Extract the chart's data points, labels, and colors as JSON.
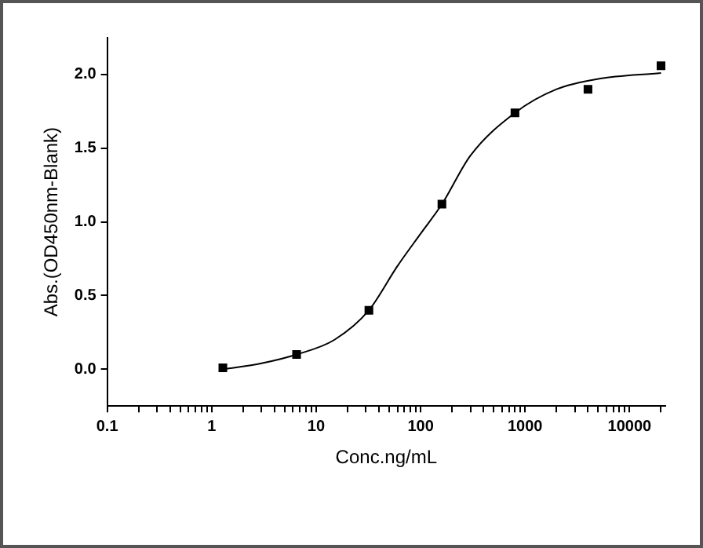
{
  "chart_data": {
    "type": "scatter",
    "xlabel": "Conc.ng/mL",
    "ylabel": "Abs.(OD450nm-Blank)",
    "log": "x",
    "xlim": [
      0.1,
      22000
    ],
    "ylim": [
      -0.25,
      2.25
    ],
    "xticks": [
      0.1,
      {
        "value": 0.2,
        "label": null
      },
      {
        "value": 0.3,
        "label": null
      },
      {
        "value": 0.4,
        "label": null
      },
      {
        "value": 0.5,
        "label": null
      },
      {
        "value": 0.6,
        "label": null
      },
      {
        "value": 0.7,
        "label": null
      },
      {
        "value": 0.8,
        "label": null
      },
      {
        "value": 0.9,
        "label": null
      },
      1,
      {
        "value": 2,
        "label": null
      },
      {
        "value": 3,
        "label": null
      },
      {
        "value": 4,
        "label": null
      },
      {
        "value": 5,
        "label": null
      },
      {
        "value": 6,
        "label": null
      },
      {
        "value": 7,
        "label": null
      },
      {
        "value": 8,
        "label": null
      },
      {
        "value": 9,
        "label": null
      },
      10,
      {
        "value": 20,
        "label": null
      },
      {
        "value": 30,
        "label": null
      },
      {
        "value": 40,
        "label": null
      },
      {
        "value": 50,
        "label": null
      },
      {
        "value": 60,
        "label": null
      },
      {
        "value": 70,
        "label": null
      },
      {
        "value": 80,
        "label": null
      },
      {
        "value": 90,
        "label": null
      },
      100,
      {
        "value": 200,
        "label": null
      },
      {
        "value": 300,
        "label": null
      },
      {
        "value": 400,
        "label": null
      },
      {
        "value": 500,
        "label": null
      },
      {
        "value": 600,
        "label": null
      },
      {
        "value": 700,
        "label": null
      },
      {
        "value": 800,
        "label": null
      },
      {
        "value": 900,
        "label": null
      },
      1000,
      {
        "value": 2000,
        "label": null
      },
      {
        "value": 3000,
        "label": null
      },
      {
        "value": 4000,
        "label": null
      },
      {
        "value": 5000,
        "label": null
      },
      {
        "value": 6000,
        "label": null
      },
      {
        "value": 7000,
        "label": null
      },
      {
        "value": 8000,
        "label": null
      },
      {
        "value": 9000,
        "label": null
      },
      10000,
      {
        "value": 20000,
        "label": null
      }
    ],
    "yticks": [
      {
        "value": 0,
        "label": "0.0"
      },
      0.5,
      {
        "value": 1,
        "label": "1.0"
      },
      1.5,
      {
        "value": 2,
        "label": "2.0"
      }
    ],
    "grid": false,
    "legend": false,
    "series": [
      {
        "type": "scatter",
        "color": "#000000",
        "marker": "square",
        "x": [
          1.28,
          6.5,
          32,
          160,
          800,
          4000,
          20000
        ],
        "values": [
          0.01,
          0.1,
          0.4,
          1.12,
          1.74,
          1.9,
          2.06
        ]
      },
      {
        "type": "line",
        "color": "#000000",
        "marker": "none",
        "x": [
          1.3,
          3,
          6.5,
          15,
          32,
          60,
          100,
          160,
          300,
          800,
          2000,
          5000,
          20000
        ],
        "values": [
          0.0,
          0.04,
          0.1,
          0.2,
          0.4,
          0.7,
          0.92,
          1.12,
          1.45,
          1.74,
          1.9,
          1.97,
          2.01
        ]
      }
    ]
  }
}
